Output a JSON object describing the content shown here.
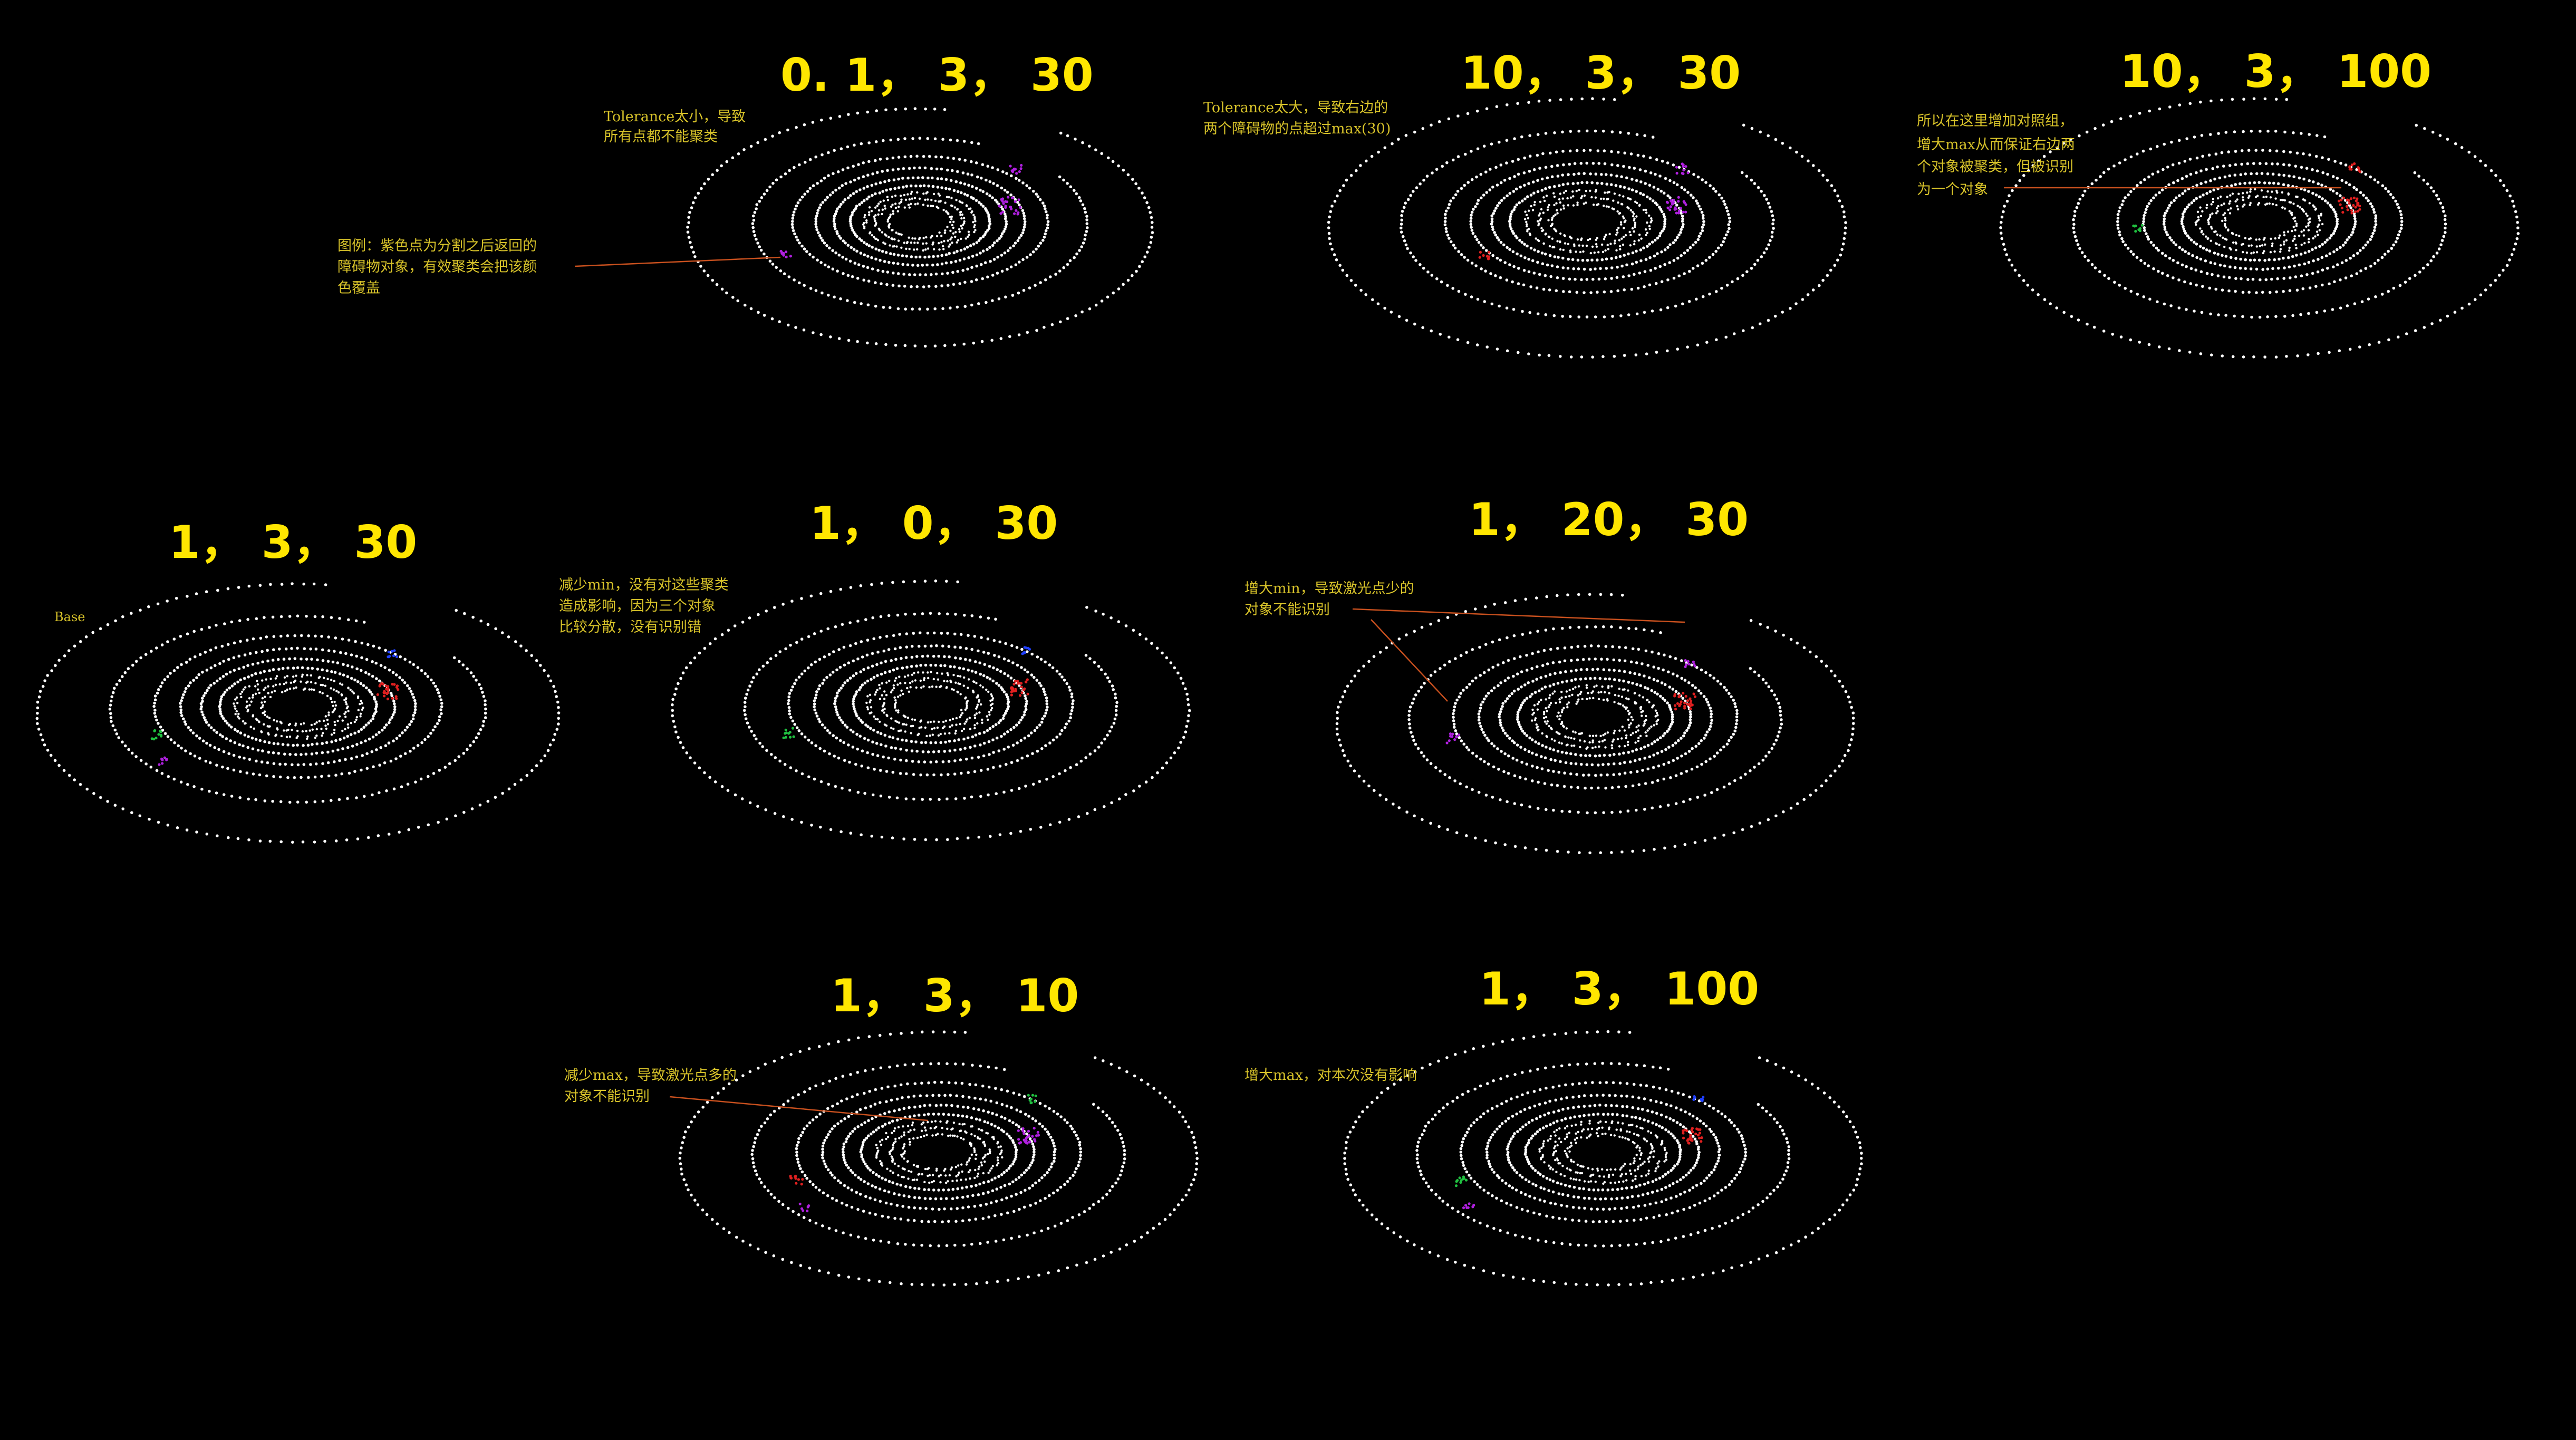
{
  "colors": {
    "background": "#000000",
    "title": "#ffe600",
    "annotation": "#d8c32a",
    "arrow": "#c8501e",
    "ring_points": "#ffffff",
    "cluster_red": "#e02020",
    "cluster_purple": "#b020e0",
    "cluster_blue": "#2040ff",
    "cluster_green": "#20c040"
  },
  "panels": [
    {
      "title": "0. 1， 3， 30",
      "notes": [
        {
          "lines": [
            "Tolerance太小，导致",
            "所有点都不能聚类"
          ]
        },
        {
          "lines": [
            "图例：紫色点为分割之后返回的",
            "障碍物对象，有效聚类会把该颜",
            "色覆盖"
          ]
        }
      ]
    },
    {
      "title": "10， 3， 30",
      "notes": [
        {
          "lines": [
            "Tolerance太大，导致右边的",
            "两个障碍物的点超过max(30)"
          ]
        }
      ]
    },
    {
      "title": "10， 3， 100",
      "notes": [
        {
          "lines": [
            "所以在这里增加对照组，",
            "增大max从而保证右边两",
            "个对象被聚类，但被识别",
            "为一个对象"
          ]
        }
      ]
    },
    {
      "title": "1， 3， 30",
      "notes": [
        {
          "lines": [
            "Base"
          ]
        }
      ]
    },
    {
      "title": "1， 0， 30",
      "notes": [
        {
          "lines": [
            "减少min，没有对这些聚类",
            "造成影响，因为三个对象",
            "比较分散，没有识别错"
          ]
        }
      ]
    },
    {
      "title": "1， 20， 30",
      "notes": [
        {
          "lines": [
            "增大min，导致激光点少的",
            "对象不能识别"
          ]
        }
      ]
    },
    {
      "title": "1， 3， 10",
      "notes": [
        {
          "lines": [
            "减少max，导致激光点多的",
            "对象不能识别"
          ]
        }
      ]
    },
    {
      "title": "1， 3， 100",
      "notes": [
        {
          "lines": [
            "增大max，对本次没有影响"
          ]
        }
      ]
    }
  ]
}
